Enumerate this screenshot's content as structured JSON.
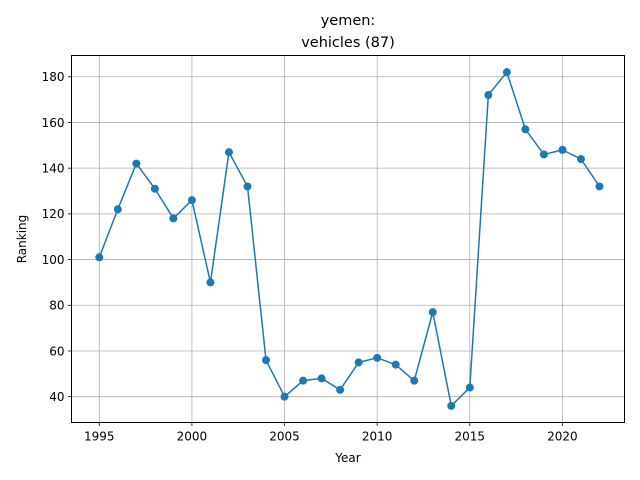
{
  "chart_data": {
    "type": "line",
    "title_line1": "yemen:",
    "title_line2": "vehicles (87)",
    "xlabel": "Year",
    "ylabel": "Ranking",
    "xlim": [
      1993.5,
      2023.35
    ],
    "ylim": [
      28.7,
      189.3
    ],
    "xticks": [
      1995,
      2000,
      2005,
      2010,
      2015,
      2020
    ],
    "yticks": [
      40,
      60,
      80,
      100,
      120,
      140,
      160,
      180
    ],
    "grid": true,
    "color": "#1f77b4",
    "marker": "circle",
    "x": [
      1995,
      1996,
      1997,
      1998,
      1999,
      2000,
      2001,
      2002,
      2003,
      2004,
      2005,
      2006,
      2007,
      2008,
      2009,
      2010,
      2011,
      2012,
      2013,
      2014,
      2015,
      2016,
      2017,
      2018,
      2019,
      2020,
      2021,
      2022
    ],
    "y": [
      101,
      122,
      142,
      131,
      118,
      126,
      90,
      147,
      132,
      56,
      40,
      47,
      48,
      43,
      55,
      57,
      54,
      47,
      77,
      36,
      44,
      172,
      182,
      157,
      146,
      148,
      144,
      132
    ]
  }
}
